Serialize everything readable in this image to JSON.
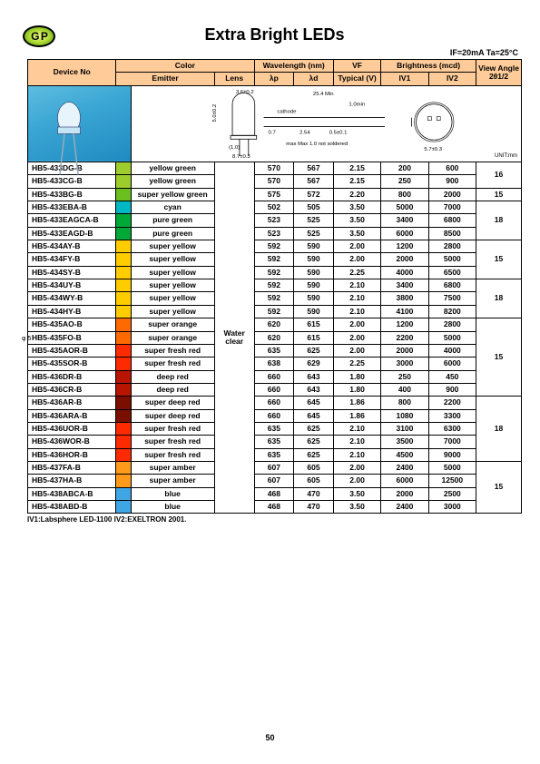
{
  "logo_text": "G P",
  "title": "Extra Bright LEDs",
  "conditions": "IF=20mA  Ta=25°C",
  "headers": {
    "device": "Device No",
    "color": "Color",
    "emitter": "Emitter",
    "lens": "Lens",
    "wavelength": "Wavelength (nm)",
    "lp": "λp",
    "ld": "λd",
    "vf_top": "VF",
    "vf_sub": "Typical (V)",
    "brightness": "Brightness (mcd)",
    "iv1": "IV1",
    "iv2": "IV2",
    "view_top": "View Angle",
    "view_sub": "2θ1/2"
  },
  "diagram_labels": {
    "l1": "3.6±0.2",
    "l2": "25.4 Min",
    "l3": "1.0min",
    "l4": "cathode",
    "l5": "5.0±0.2",
    "l6": "0.7",
    "l7": "2.54",
    "l8": "0.5±0.1",
    "l9": "(1.0)",
    "l10": "max Max 1.0 not soldered",
    "l11": "8.7±0.3",
    "l12": "5.7±0.3",
    "unit": "UNIT:mm"
  },
  "lens_text": "Water clear",
  "footnote": "IV1:Labsphere LED-1100   IV2:EXELTRON 2001.",
  "page_number": "50",
  "side_marker": "φ\n5",
  "swatch_colors": {
    "yellow_green": "#9dcd2c",
    "super_yellow_green": "#6bbf1f",
    "cyan": "#00b8c4",
    "pure_green": "#00a838",
    "super_yellow": "#ffcc00",
    "super_orange": "#ff6a00",
    "super_fresh_red": "#ff2a00",
    "deep_red": "#b71500",
    "super_deep_red": "#7a0f00",
    "super_amber": "#ff9a1a",
    "blue": "#3fa6e6"
  },
  "rows": [
    {
      "device": "HB5-433DG-B",
      "color": "yellow_green",
      "emitter": "yellow green",
      "lp": "570",
      "ld": "567",
      "vf": "2.15",
      "iv1": "200",
      "iv2": "600",
      "angle": "16",
      "angle_span": 2
    },
    {
      "device": "HB5-433CG-B",
      "color": "yellow_green",
      "emitter": "yellow green",
      "lp": "570",
      "ld": "567",
      "vf": "2.15",
      "iv1": "250",
      "iv2": "900"
    },
    {
      "device": "HB5-433BG-B",
      "color": "super_yellow_green",
      "emitter": "super yellow green",
      "lp": "575",
      "ld": "572",
      "vf": "2.20",
      "iv1": "800",
      "iv2": "2000",
      "angle": "15",
      "angle_span": 1
    },
    {
      "device": "HB5-433EBA-B",
      "color": "cyan",
      "emitter": "cyan",
      "lp": "502",
      "ld": "505",
      "vf": "3.50",
      "iv1": "5000",
      "iv2": "7000",
      "angle": "18",
      "angle_span": 3
    },
    {
      "device": "HB5-433EAGCA-B",
      "color": "pure_green",
      "emitter": "pure green",
      "lp": "523",
      "ld": "525",
      "vf": "3.50",
      "iv1": "3400",
      "iv2": "6800"
    },
    {
      "device": "HB5-433EAGD-B",
      "color": "pure_green",
      "emitter": "pure green",
      "lp": "523",
      "ld": "525",
      "vf": "3.50",
      "iv1": "6000",
      "iv2": "8500"
    },
    {
      "device": "HB5-434AY-B",
      "color": "super_yellow",
      "emitter": "super yellow",
      "lp": "592",
      "ld": "590",
      "vf": "2.00",
      "iv1": "1200",
      "iv2": "2800",
      "angle": "15",
      "angle_span": 3
    },
    {
      "device": "HB5-434FY-B",
      "color": "super_yellow",
      "emitter": "super yellow",
      "lp": "592",
      "ld": "590",
      "vf": "2.00",
      "iv1": "2000",
      "iv2": "5000"
    },
    {
      "device": "HB5-434SY-B",
      "color": "super_yellow",
      "emitter": "super yellow",
      "lp": "592",
      "ld": "590",
      "vf": "2.25",
      "iv1": "4000",
      "iv2": "6500"
    },
    {
      "device": "HB5-434UY-B",
      "color": "super_yellow",
      "emitter": "super yellow",
      "lp": "592",
      "ld": "590",
      "vf": "2.10",
      "iv1": "3400",
      "iv2": "6800",
      "angle": "18",
      "angle_span": 3
    },
    {
      "device": "HB5-434WY-B",
      "color": "super_yellow",
      "emitter": "super yellow",
      "lp": "592",
      "ld": "590",
      "vf": "2.10",
      "iv1": "3800",
      "iv2": "7500"
    },
    {
      "device": "HB5-434HY-B",
      "color": "super_yellow",
      "emitter": "super yellow",
      "lp": "592",
      "ld": "590",
      "vf": "2.10",
      "iv1": "4100",
      "iv2": "8200"
    },
    {
      "device": "HB5-435AO-B",
      "color": "super_orange",
      "emitter": "super orange",
      "lp": "620",
      "ld": "615",
      "vf": "2.00",
      "iv1": "1200",
      "iv2": "2800",
      "angle": "15",
      "angle_span": 6
    },
    {
      "device": "HB5-435FO-B",
      "color": "super_orange",
      "emitter": "super orange",
      "lp": "620",
      "ld": "615",
      "vf": "2.00",
      "iv1": "2200",
      "iv2": "5000"
    },
    {
      "device": "HB5-435AOR-B",
      "color": "super_fresh_red",
      "emitter": "super fresh red",
      "lp": "635",
      "ld": "625",
      "vf": "2.00",
      "iv1": "2000",
      "iv2": "4000"
    },
    {
      "device": "HB5-435SOR-B",
      "color": "super_fresh_red",
      "emitter": "super fresh red",
      "lp": "638",
      "ld": "629",
      "vf": "2.25",
      "iv1": "3000",
      "iv2": "6000"
    },
    {
      "device": "HB5-436DR-B",
      "color": "deep_red",
      "emitter": "deep red",
      "lp": "660",
      "ld": "643",
      "vf": "1.80",
      "iv1": "250",
      "iv2": "450"
    },
    {
      "device": "HB5-436CR-B",
      "color": "deep_red",
      "emitter": "deep red",
      "lp": "660",
      "ld": "643",
      "vf": "1.80",
      "iv1": "400",
      "iv2": "900"
    },
    {
      "device": "HB5-436AR-B",
      "color": "super_deep_red",
      "emitter": "super deep red",
      "lp": "660",
      "ld": "645",
      "vf": "1.86",
      "iv1": "800",
      "iv2": "2200",
      "angle": "18",
      "angle_span": 5
    },
    {
      "device": "HB5-436ARA-B",
      "color": "super_deep_red",
      "emitter": "super deep red",
      "lp": "660",
      "ld": "645",
      "vf": "1.86",
      "iv1": "1080",
      "iv2": "3300"
    },
    {
      "device": "HB5-436UOR-B",
      "color": "super_fresh_red",
      "emitter": "super fresh red",
      "lp": "635",
      "ld": "625",
      "vf": "2.10",
      "iv1": "3100",
      "iv2": "6300"
    },
    {
      "device": "HB5-436WOR-B",
      "color": "super_fresh_red",
      "emitter": "super fresh red",
      "lp": "635",
      "ld": "625",
      "vf": "2.10",
      "iv1": "3500",
      "iv2": "7000"
    },
    {
      "device": "HB5-436HOR-B",
      "color": "super_fresh_red",
      "emitter": "super fresh red",
      "lp": "635",
      "ld": "625",
      "vf": "2.10",
      "iv1": "4500",
      "iv2": "9000"
    },
    {
      "device": "HB5-437FA-B",
      "color": "super_amber",
      "emitter": "super amber",
      "lp": "607",
      "ld": "605",
      "vf": "2.00",
      "iv1": "2400",
      "iv2": "5000",
      "angle": "15",
      "angle_span": 4
    },
    {
      "device": "HB5-437HA-B",
      "color": "super_amber",
      "emitter": "super amber",
      "lp": "607",
      "ld": "605",
      "vf": "2.00",
      "iv1": "6000",
      "iv2": "12500"
    },
    {
      "device": "HB5-438ABCA-B",
      "color": "blue",
      "emitter": "blue",
      "lp": "468",
      "ld": "470",
      "vf": "3.50",
      "iv1": "2000",
      "iv2": "2500"
    },
    {
      "device": "HB5-438ABD-B",
      "color": "blue",
      "emitter": "blue",
      "lp": "468",
      "ld": "470",
      "vf": "3.50",
      "iv1": "2400",
      "iv2": "3000"
    }
  ]
}
